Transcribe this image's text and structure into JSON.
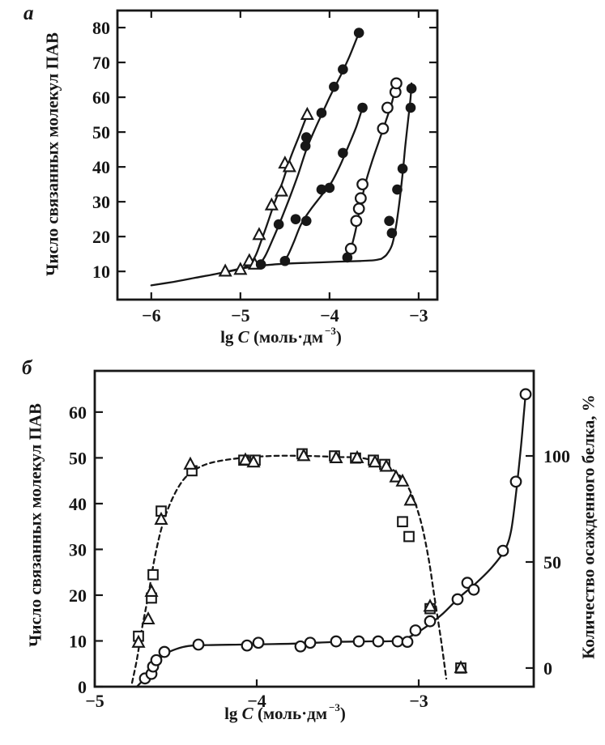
{
  "colors": {
    "ink": "#171717",
    "paper": "#ffffff"
  },
  "figure": {
    "panels": [
      {
        "label": "a",
        "ylabel": "Число связанных молекул ПАВ",
        "xlabel": {
          "pre": "lg ",
          "var": "C",
          "mid": " (моль·дм",
          "sup": "−3",
          "post": ")"
        }
      },
      {
        "label": "б",
        "ylabel": "Число связанных молекул ПАВ",
        "y2label": "Количество осажденного белка, %",
        "xlabel": {
          "pre": "lg ",
          "var": "C",
          "mid": " (моль·дм",
          "sup": "−3",
          "post": ")"
        }
      }
    ]
  },
  "chart_data": [
    {
      "id": "a",
      "type": "scatter",
      "title": "",
      "xlabel": "lg C (моль·дм−3)",
      "ylabel": "Число связанных молекул ПАВ",
      "xlim": [
        -6.38,
        -2.79
      ],
      "ylim": [
        1.9,
        84.9
      ],
      "grid": false,
      "xticks": [
        {
          "v": -6,
          "t": "−6"
        },
        {
          "v": -5,
          "t": "−5"
        },
        {
          "v": -4,
          "t": "−4"
        },
        {
          "v": -3,
          "t": "−3"
        }
      ],
      "yticks": [
        {
          "v": 10,
          "t": "10"
        },
        {
          "v": 20,
          "t": "20"
        },
        {
          "v": 30,
          "t": "30"
        },
        {
          "v": 40,
          "t": "40"
        },
        {
          "v": 50,
          "t": "50"
        },
        {
          "v": 60,
          "t": "60"
        },
        {
          "v": 70,
          "t": "70"
        },
        {
          "v": 80,
          "t": "80"
        }
      ],
      "series": [
        {
          "name": "baseline",
          "marker": "none",
          "line": "solid",
          "line_points": [
            [
              -6.0,
              6
            ],
            [
              -5.75,
              7
            ],
            [
              -5.5,
              8.2
            ],
            [
              -5.25,
              9.4
            ],
            [
              -5.0,
              10.8
            ],
            [
              -4.75,
              11.7
            ],
            [
              -4.5,
              12.2
            ],
            [
              -4.2,
              12.5
            ],
            [
              -3.9,
              12.8
            ],
            [
              -3.65,
              13
            ],
            [
              -3.5,
              13.2
            ],
            [
              -3.42,
              13.6
            ]
          ],
          "points": []
        },
        {
          "name": "triangle-isotherm",
          "marker": "triangle-open",
          "line": "solid",
          "line_points": [
            [
              -5.2,
              9.7
            ],
            [
              -5.0,
              10.7
            ],
            [
              -4.9,
              12
            ],
            [
              -4.83,
              14.5
            ],
            [
              -4.77,
              18.5
            ],
            [
              -4.7,
              23.5
            ],
            [
              -4.62,
              29.5
            ],
            [
              -4.53,
              35.5
            ],
            [
              -4.44,
              42.5
            ],
            [
              -4.34,
              49
            ],
            [
              -4.25,
              55
            ]
          ],
          "points": [
            [
              -5.17,
              10
            ],
            [
              -5.0,
              10.5
            ],
            [
              -4.9,
              13
            ],
            [
              -4.84,
              12
            ],
            [
              -4.79,
              20.5
            ],
            [
              -4.65,
              29
            ],
            [
              -4.54,
              33
            ],
            [
              -4.5,
              41
            ],
            [
              -4.45,
              40
            ],
            [
              -4.25,
              55
            ]
          ]
        },
        {
          "name": "filled-circle-isotherm-1",
          "marker": "circle-filled",
          "line": "solid",
          "line_points": [
            [
              -4.79,
              11.8
            ],
            [
              -4.72,
              14.5
            ],
            [
              -4.64,
              19
            ],
            [
              -4.55,
              24.5
            ],
            [
              -4.45,
              31
            ],
            [
              -4.35,
              38
            ],
            [
              -4.26,
              45
            ],
            [
              -4.17,
              50.5
            ],
            [
              -4.08,
              55.5
            ],
            [
              -3.98,
              61
            ],
            [
              -3.88,
              66
            ],
            [
              -3.78,
              71.5
            ],
            [
              -3.67,
              78.5
            ]
          ],
          "points": [
            [
              -4.77,
              12
            ],
            [
              -4.57,
              23.5
            ],
            [
              -4.27,
              46
            ],
            [
              -4.26,
              48.5
            ],
            [
              -4.09,
              55.5
            ],
            [
              -3.95,
              63
            ],
            [
              -3.85,
              68
            ],
            [
              -3.67,
              78.5
            ]
          ]
        },
        {
          "name": "filled-circle-isotherm-2",
          "marker": "circle-filled",
          "line": "solid",
          "line_points": [
            [
              -4.53,
              12.8
            ],
            [
              -4.47,
              14.5
            ],
            [
              -4.4,
              18.5
            ],
            [
              -4.32,
              23.5
            ],
            [
              -4.22,
              27.5
            ],
            [
              -4.1,
              31.5
            ],
            [
              -3.98,
              35.5
            ],
            [
              -3.88,
              40.5
            ],
            [
              -3.78,
              46.5
            ],
            [
              -3.7,
              51.5
            ],
            [
              -3.63,
              57
            ]
          ],
          "points": [
            [
              -4.5,
              13
            ],
            [
              -4.38,
              25
            ],
            [
              -4.26,
              24.5
            ],
            [
              -4.09,
              33.5
            ],
            [
              -4.0,
              34
            ],
            [
              -3.85,
              44
            ],
            [
              -3.63,
              57
            ]
          ]
        },
        {
          "name": "open-circle-isotherm",
          "marker": "circle-open",
          "line": "solid",
          "line_points": [
            [
              -3.81,
              12.9
            ],
            [
              -3.76,
              16.5
            ],
            [
              -3.71,
              21.5
            ],
            [
              -3.66,
              28
            ],
            [
              -3.6,
              35
            ],
            [
              -3.53,
              41
            ],
            [
              -3.45,
              47
            ],
            [
              -3.37,
              53
            ],
            [
              -3.3,
              58.5
            ],
            [
              -3.25,
              64
            ]
          ],
          "points": [
            [
              -3.76,
              16.5
            ],
            [
              -3.7,
              24.5
            ],
            [
              -3.67,
              28
            ],
            [
              -3.65,
              31
            ],
            [
              -3.63,
              35
            ],
            [
              -3.4,
              51
            ],
            [
              -3.35,
              57
            ],
            [
              -3.26,
              61.5
            ],
            [
              -3.25,
              64
            ]
          ]
        },
        {
          "name": "filled-circle-isotherm-3",
          "marker": "circle-filled",
          "line": "solid",
          "line_points": [
            [
              -3.42,
              13.6
            ],
            [
              -3.36,
              14.8
            ],
            [
              -3.3,
              17.5
            ],
            [
              -3.26,
              22
            ],
            [
              -3.22,
              29
            ],
            [
              -3.18,
              38
            ],
            [
              -3.15,
              46
            ],
            [
              -3.12,
              53
            ],
            [
              -3.09,
              60
            ],
            [
              -3.08,
              64
            ]
          ],
          "points": [
            [
              -3.8,
              14
            ],
            [
              -3.33,
              24.5
            ],
            [
              -3.3,
              21
            ],
            [
              -3.24,
              33.5
            ],
            [
              -3.18,
              39.5
            ],
            [
              -3.09,
              57
            ],
            [
              -3.08,
              62.5
            ]
          ]
        }
      ]
    },
    {
      "id": "b",
      "type": "scatter",
      "title": "",
      "xlabel": "lg C (моль·дм−3)",
      "ylabel": "Число связанных молекул ПАВ",
      "y2label": "Количество осажденного белка, %",
      "xlim": [
        -5.0,
        -2.29
      ],
      "ylim": [
        0,
        69
      ],
      "y2lim": [
        -8.8,
        140.1
      ],
      "grid": false,
      "xticks": [
        {
          "v": -5,
          "t": "−5"
        },
        {
          "v": -4,
          "t": "−4"
        },
        {
          "v": -3,
          "t": "−3"
        }
      ],
      "yticks": [
        {
          "v": 0,
          "t": "0"
        },
        {
          "v": 10,
          "t": "10"
        },
        {
          "v": 20,
          "t": "20"
        },
        {
          "v": 30,
          "t": "30"
        },
        {
          "v": 40,
          "t": "40"
        },
        {
          "v": 50,
          "t": "50"
        },
        {
          "v": 60,
          "t": "60"
        }
      ],
      "y2ticks": [
        {
          "v": 0,
          "t": "0"
        },
        {
          "v": 50,
          "t": "50"
        },
        {
          "v": 100,
          "t": "100"
        }
      ],
      "series": [
        {
          "name": "bound-surfactant-circles",
          "axis": "left",
          "marker": "circle-open",
          "line": "solid",
          "line_points": [
            [
              -4.74,
              0
            ],
            [
              -4.7,
              1.5
            ],
            [
              -4.66,
              3.2
            ],
            [
              -4.62,
              5.2
            ],
            [
              -4.57,
              7.0
            ],
            [
              -4.5,
              8.2
            ],
            [
              -4.42,
              8.9
            ],
            [
              -4.3,
              9.1
            ],
            [
              -4.1,
              9.2
            ],
            [
              -3.9,
              9.3
            ],
            [
              -3.7,
              9.5
            ],
            [
              -3.5,
              9.8
            ],
            [
              -3.3,
              9.9
            ],
            [
              -3.15,
              10
            ],
            [
              -3.05,
              11
            ],
            [
              -2.95,
              13.2
            ],
            [
              -2.85,
              16
            ],
            [
              -2.75,
              19.5
            ],
            [
              -2.65,
              22.5
            ],
            [
              -2.55,
              26
            ],
            [
              -2.47,
              29.8
            ],
            [
              -2.43,
              34
            ],
            [
              -2.4,
              42
            ],
            [
              -2.37,
              52
            ],
            [
              -2.35,
              60
            ],
            [
              -2.34,
              64
            ]
          ],
          "points": [
            [
              -4.69,
              1.8
            ],
            [
              -4.65,
              2.8
            ],
            [
              -4.64,
              4.4
            ],
            [
              -4.62,
              5.8
            ],
            [
              -4.57,
              7.6
            ],
            [
              -4.36,
              9.2
            ],
            [
              -4.06,
              9.0
            ],
            [
              -3.99,
              9.6
            ],
            [
              -3.73,
              8.8
            ],
            [
              -3.67,
              9.6
            ],
            [
              -3.51,
              9.9
            ],
            [
              -3.37,
              9.9
            ],
            [
              -3.25,
              9.9
            ],
            [
              -3.13,
              9.9
            ],
            [
              -3.07,
              9.8
            ],
            [
              -3.02,
              12.3
            ],
            [
              -2.93,
              14.3
            ],
            [
              -2.76,
              19.1
            ],
            [
              -2.7,
              22.7
            ],
            [
              -2.66,
              21.2
            ],
            [
              -2.48,
              29.7
            ],
            [
              -2.4,
              44.8
            ],
            [
              -2.34,
              63.9
            ]
          ]
        },
        {
          "name": "precipitated-protein-squares",
          "axis": "right",
          "marker": "square-open",
          "line": "none",
          "points": [
            [
              -4.73,
              15
            ],
            [
              -4.65,
              33
            ],
            [
              -4.64,
              44
            ],
            [
              -4.59,
              74
            ],
            [
              -4.4,
              93
            ],
            [
              -4.08,
              98
            ],
            [
              -4.01,
              98
            ],
            [
              -3.72,
              101
            ],
            [
              -3.52,
              100
            ],
            [
              -3.39,
              99
            ],
            [
              -3.28,
              98
            ],
            [
              -3.21,
              96
            ],
            [
              -3.1,
              69
            ],
            [
              -3.06,
              62
            ],
            [
              -2.93,
              28
            ],
            [
              -2.74,
              0
            ]
          ]
        },
        {
          "name": "precipitated-protein-triangles",
          "axis": "right",
          "marker": "triangle-open",
          "line": "dashed",
          "line_points": [
            [
              -4.77,
              -7
            ],
            [
              -4.74,
              4
            ],
            [
              -4.71,
              18
            ],
            [
              -4.67,
              34
            ],
            [
              -4.63,
              52
            ],
            [
              -4.58,
              68
            ],
            [
              -4.52,
              80
            ],
            [
              -4.45,
              89
            ],
            [
              -4.37,
              94
            ],
            [
              -4.27,
              97
            ],
            [
              -4.1,
              99
            ],
            [
              -3.9,
              100
            ],
            [
              -3.7,
              100
            ],
            [
              -3.5,
              99.5
            ],
            [
              -3.35,
              99
            ],
            [
              -3.22,
              96
            ],
            [
              -3.12,
              91
            ],
            [
              -3.05,
              83
            ],
            [
              -2.99,
              70
            ],
            [
              -2.94,
              52
            ],
            [
              -2.9,
              32
            ],
            [
              -2.86,
              12
            ],
            [
              -2.83,
              -5
            ]
          ],
          "points": [
            [
              -4.73,
              12
            ],
            [
              -4.67,
              23
            ],
            [
              -4.65,
              36
            ],
            [
              -4.59,
              70
            ],
            [
              -4.41,
              96
            ],
            [
              -4.07,
              98
            ],
            [
              -4.02,
              97
            ],
            [
              -3.71,
              100
            ],
            [
              -3.51,
              99
            ],
            [
              -3.38,
              99
            ],
            [
              -3.27,
              97
            ],
            [
              -3.2,
              95
            ],
            [
              -3.14,
              90
            ],
            [
              -3.1,
              88
            ],
            [
              -3.05,
              79
            ],
            [
              -2.93,
              29
            ],
            [
              -2.74,
              0
            ]
          ]
        }
      ]
    }
  ]
}
